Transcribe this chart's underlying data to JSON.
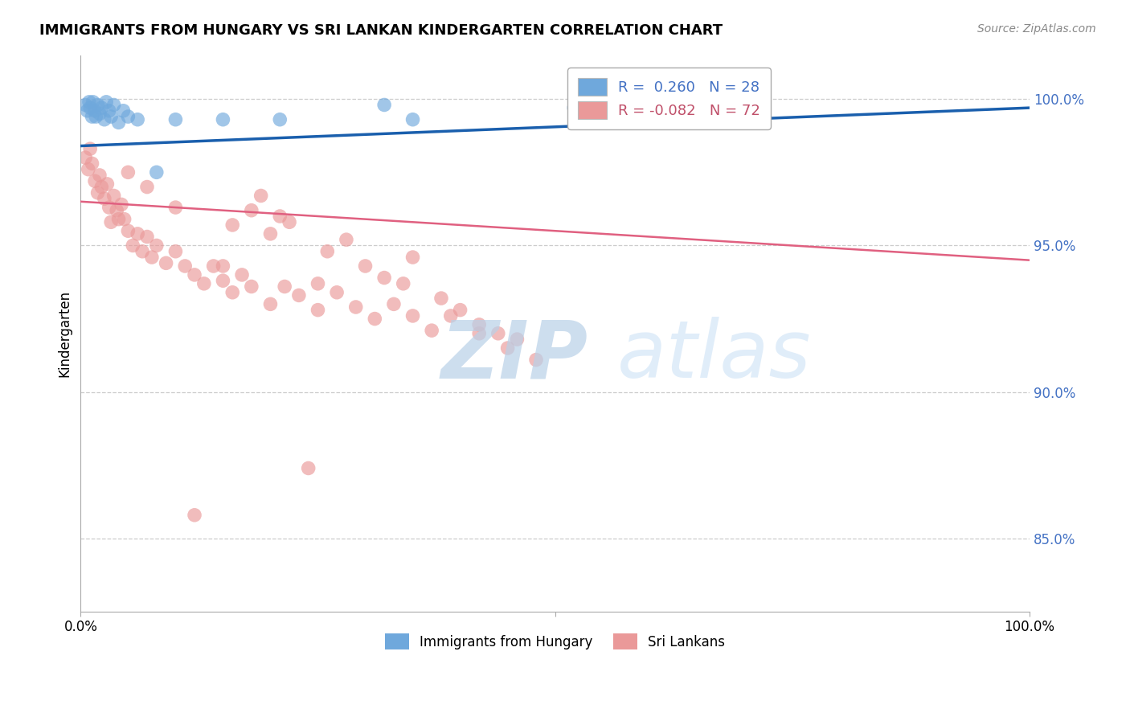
{
  "title": "IMMIGRANTS FROM HUNGARY VS SRI LANKAN KINDERGARTEN CORRELATION CHART",
  "source": "Source: ZipAtlas.com",
  "ylabel": "Kindergarten",
  "ytick_labels": [
    "85.0%",
    "90.0%",
    "95.0%",
    "100.0%"
  ],
  "ytick_values": [
    0.85,
    0.9,
    0.95,
    1.0
  ],
  "xlim": [
    0.0,
    1.0
  ],
  "ylim": [
    0.825,
    1.015
  ],
  "legend_blue_r": "0.260",
  "legend_blue_n": "28",
  "legend_pink_r": "-0.082",
  "legend_pink_n": "72",
  "blue_color": "#6fa8dc",
  "pink_color": "#ea9999",
  "trendline_blue": "#1a5fad",
  "trendline_pink": "#e06080",
  "grid_color": "#cccccc",
  "blue_x": [
    0.005,
    0.007,
    0.009,
    0.01,
    0.012,
    0.013,
    0.015,
    0.016,
    0.018,
    0.02,
    0.022,
    0.025,
    0.027,
    0.03,
    0.032,
    0.035,
    0.04,
    0.045,
    0.05,
    0.06,
    0.08,
    0.1,
    0.15,
    0.21,
    0.32,
    0.35,
    0.52,
    0.65
  ],
  "blue_y": [
    0.998,
    0.996,
    0.999,
    0.997,
    0.994,
    0.999,
    0.996,
    0.994,
    0.998,
    0.995,
    0.997,
    0.993,
    0.999,
    0.996,
    0.994,
    0.998,
    0.992,
    0.996,
    0.994,
    0.993,
    0.975,
    0.993,
    0.993,
    0.993,
    0.998,
    0.993,
    0.997,
    0.998
  ],
  "pink_x": [
    0.005,
    0.008,
    0.01,
    0.012,
    0.015,
    0.018,
    0.02,
    0.022,
    0.025,
    0.028,
    0.03,
    0.032,
    0.035,
    0.038,
    0.04,
    0.043,
    0.046,
    0.05,
    0.055,
    0.06,
    0.065,
    0.07,
    0.075,
    0.08,
    0.09,
    0.1,
    0.11,
    0.12,
    0.13,
    0.14,
    0.15,
    0.16,
    0.17,
    0.18,
    0.2,
    0.215,
    0.23,
    0.25,
    0.27,
    0.29,
    0.31,
    0.33,
    0.35,
    0.37,
    0.39,
    0.42,
    0.45,
    0.48,
    0.2,
    0.35,
    0.15,
    0.25,
    0.3,
    0.32,
    0.18,
    0.22,
    0.28,
    0.26,
    0.21,
    0.19,
    0.34,
    0.38,
    0.4,
    0.42,
    0.46,
    0.1,
    0.16,
    0.07,
    0.44,
    0.05,
    0.24,
    0.12
  ],
  "pink_y": [
    0.98,
    0.976,
    0.983,
    0.978,
    0.972,
    0.968,
    0.974,
    0.97,
    0.966,
    0.971,
    0.963,
    0.958,
    0.967,
    0.962,
    0.959,
    0.964,
    0.959,
    0.955,
    0.95,
    0.954,
    0.948,
    0.953,
    0.946,
    0.95,
    0.944,
    0.948,
    0.943,
    0.94,
    0.937,
    0.943,
    0.938,
    0.934,
    0.94,
    0.936,
    0.93,
    0.936,
    0.933,
    0.928,
    0.934,
    0.929,
    0.925,
    0.93,
    0.926,
    0.921,
    0.926,
    0.92,
    0.915,
    0.911,
    0.954,
    0.946,
    0.943,
    0.937,
    0.943,
    0.939,
    0.962,
    0.958,
    0.952,
    0.948,
    0.96,
    0.967,
    0.937,
    0.932,
    0.928,
    0.923,
    0.918,
    0.963,
    0.957,
    0.97,
    0.92,
    0.975,
    0.874,
    0.858
  ]
}
